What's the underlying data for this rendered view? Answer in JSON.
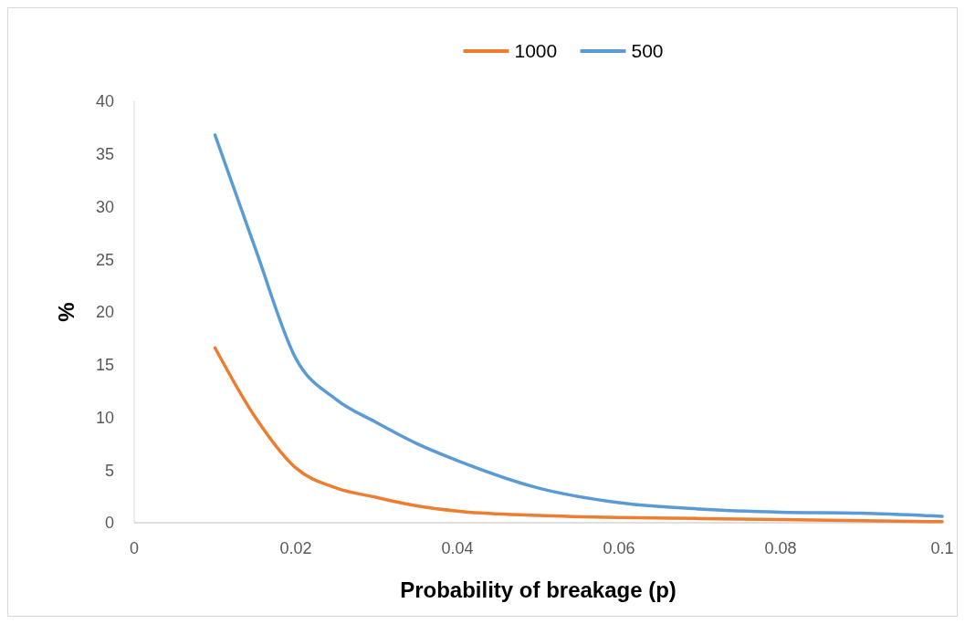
{
  "chart_data": {
    "type": "line",
    "xlabel": "Probability of breakage (p)",
    "ylabel": "%",
    "x": [
      0.01,
      0.015,
      0.02,
      0.025,
      0.03,
      0.035,
      0.04,
      0.05,
      0.06,
      0.07,
      0.08,
      0.09,
      0.1
    ],
    "series": [
      {
        "name": "1000",
        "color": "#ed7d31",
        "values": [
          16.6,
          10,
          5.2,
          3.3,
          2.4,
          1.6,
          1.1,
          0.7,
          0.5,
          0.4,
          0.3,
          0.2,
          0.1
        ]
      },
      {
        "name": "500",
        "color": "#5b9bd5",
        "values": [
          36.8,
          26,
          15.6,
          11.7,
          9.5,
          7.5,
          5.9,
          3.3,
          1.9,
          1.3,
          1.0,
          0.9,
          0.6
        ]
      }
    ],
    "xlim": [
      0,
      0.1
    ],
    "xticks": [
      0,
      0.02,
      0.04,
      0.06,
      0.08,
      0.1
    ],
    "ylim": [
      0,
      40
    ],
    "yticks": [
      0,
      5,
      10,
      15,
      20,
      25,
      30,
      35,
      40
    ],
    "legend": "top",
    "grid": false,
    "marker": "none",
    "line_style": "solid"
  }
}
